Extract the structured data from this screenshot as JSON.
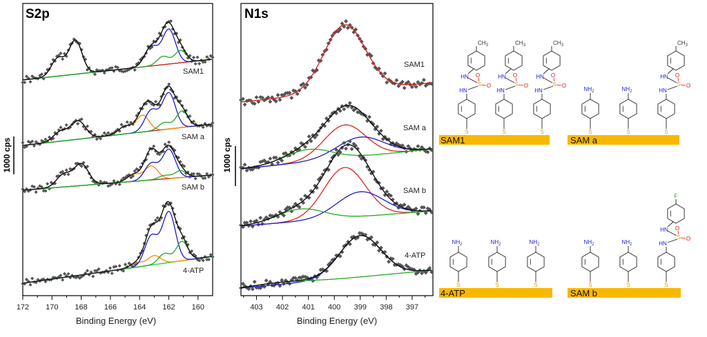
{
  "chart_data": [
    {
      "type": "line",
      "title": "S2p",
      "xlabel": "Binding Energy (eV)",
      "ylabel": "1000 cps",
      "xlim": [
        172,
        159
      ],
      "xticks": [
        172,
        170,
        168,
        166,
        164,
        162,
        160
      ],
      "colors": {
        "envelope": "#111111",
        "sulfonyl": "#d62020",
        "sulfur_a": "#1a1acc",
        "sulfur_b": "#22aa22",
        "sulfur_c": "#ff8800",
        "baseline": "#33cc33",
        "points": "#555555"
      },
      "spectra": [
        {
          "label": "SAM1",
          "baseline_y": [
            116,
            86
          ],
          "components": [
            {
              "name": "sulfonyl",
              "centers": [
                169.6,
                168.4
              ],
              "heights": [
                26,
                49
              ],
              "width": 0.45
            },
            {
              "name": "sulfur_a",
              "centers": [
                163.2,
                162.0
              ],
              "heights": [
                28,
                50
              ],
              "width": 0.45
            },
            {
              "name": "sulfur_b",
              "centers": [
                162.4,
                161.2
              ],
              "heights": [
                12,
                18
              ],
              "width": 0.4
            }
          ]
        },
        {
          "label": "SAM a",
          "baseline_y": [
            211,
            180
          ],
          "components": [
            {
              "name": "sulfonyl",
              "centers": [
                169.4,
                168.2
              ],
              "heights": [
                14,
                26
              ],
              "width": 0.5
            },
            {
              "name": "sulfur_c",
              "centers": [
                165.0,
                163.8
              ],
              "heights": [
                11,
                24
              ],
              "width": 0.45
            },
            {
              "name": "sulfur_a",
              "centers": [
                163.2,
                162.0
              ],
              "heights": [
                30,
                52
              ],
              "width": 0.45
            },
            {
              "name": "sulfur_b",
              "centers": [
                162.3,
                161.1
              ],
              "heights": [
                10,
                24
              ],
              "width": 0.4
            }
          ]
        },
        {
          "label": "SAM b",
          "baseline_y": [
            276,
            254
          ],
          "components": [
            {
              "name": "sulfonyl",
              "centers": [
                169.2,
                168.0
              ],
              "heights": [
                18,
                31
              ],
              "width": 0.5
            },
            {
              "name": "sulfur_c",
              "centers": [
                164.4,
                163.2
              ],
              "heights": [
                10,
                20
              ],
              "width": 0.45
            },
            {
              "name": "sulfur_a",
              "centers": [
                163.2,
                162.0
              ],
              "heights": [
                24,
                42
              ],
              "width": 0.45
            },
            {
              "name": "sulfur_b",
              "centers": [
                162.3,
                161.2
              ],
              "heights": [
                5,
                10
              ],
              "width": 0.4
            }
          ]
        },
        {
          "label": "4-ATP",
          "baseline_y": [
            411,
            372
          ],
          "components": [
            {
              "name": "sulfur_c",
              "centers": [
                164.2,
                163.0
              ],
              "heights": [
                6,
                13
              ],
              "width": 0.45
            },
            {
              "name": "sulfur_a",
              "centers": [
                163.2,
                162.0
              ],
              "heights": [
                42,
                73
              ],
              "width": 0.45
            },
            {
              "name": "sulfur_b",
              "centers": [
                162.3,
                161.1
              ],
              "heights": [
                14,
                28
              ],
              "width": 0.4
            }
          ]
        }
      ]
    },
    {
      "type": "line",
      "title": "N1s",
      "xlabel": "Binding Energy (eV)",
      "ylabel": "1000 cps",
      "xlim": [
        403.6,
        396.2
      ],
      "xticks": [
        403,
        402,
        401,
        400,
        399,
        398,
        397
      ],
      "colors": {
        "envelope": "#111111",
        "n_red": "#e02020",
        "n_blue": "#1a1acc",
        "background": "#22aa22",
        "points": "#555555"
      },
      "spectra": [
        {
          "label": "SAM1",
          "bg_y": [
            148,
            120
          ],
          "components": [
            {
              "name": "n_red",
              "center": 399.6,
              "height": 97,
              "width": 0.8
            }
          ],
          "envelope_color": "n_red"
        },
        {
          "label": "SAM a",
          "bg_y": [
            245,
            216
          ],
          "components": [
            {
              "name": "n_red",
              "center": 399.6,
              "height": 48,
              "width": 0.8
            },
            {
              "name": "n_blue",
              "center": 399.0,
              "height": 28,
              "width": 0.9
            },
            {
              "name": "background",
              "center": 401.0,
              "height": 18,
              "width": 0.9
            }
          ]
        },
        {
          "label": "SAM b",
          "bg_y": [
            328,
            306
          ],
          "components": [
            {
              "name": "n_red",
              "center": 399.6,
              "height": 73,
              "width": 0.8
            },
            {
              "name": "n_blue",
              "center": 399.0,
              "height": 36,
              "width": 0.9
            },
            {
              "name": "background",
              "center": 401.3,
              "height": 18,
              "width": 0.9
            }
          ]
        },
        {
          "label": "4-ATP",
          "bg_y": [
            418,
            392
          ],
          "components": [
            {
              "name": "n_blue",
              "center": 399.0,
              "height": 60,
              "width": 0.8
            },
            {
              "name": "background",
              "center": 402.0,
              "height": 3,
              "width": 1.0
            }
          ]
        }
      ]
    }
  ],
  "schemes": {
    "colors": {
      "gold": "#f9b800",
      "sulfur": "#d4a600",
      "nitrogen": "#1a1ae0",
      "oxygen": "#e01010",
      "fluorine": "#22aa22",
      "ring": "#222222"
    },
    "text": {
      "nh": "NH",
      "nh2": "NH",
      "sub2": "2",
      "hn": "HN",
      "s": "S",
      "o": "O",
      "ch3": "CH",
      "sub3": "3",
      "f": "F"
    },
    "panels": [
      {
        "label": "SAM1",
        "molecules": [
          "sulfonamide",
          "sulfonamide",
          "sulfonamide"
        ]
      },
      {
        "label": "SAM a",
        "molecules": [
          "amine",
          "amine",
          "sulfonamide"
        ]
      },
      {
        "label": "4-ATP",
        "molecules": [
          "amine",
          "amine",
          "amine"
        ]
      },
      {
        "label": "SAM b",
        "molecules": [
          "amine",
          "amine",
          "sulfonamide_f"
        ]
      }
    ]
  }
}
